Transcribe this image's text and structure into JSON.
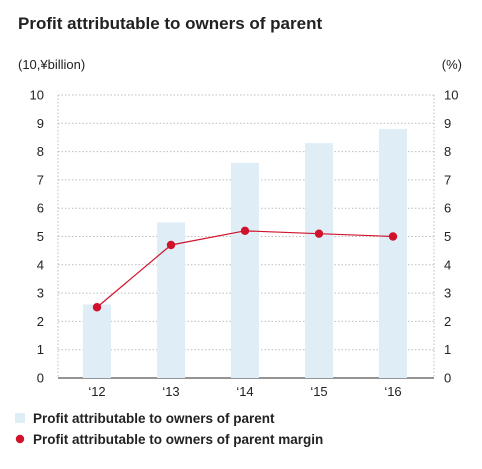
{
  "chart_data": {
    "type": "bar+line",
    "title": "Profit attributable to owners of parent",
    "left_axis_unit": "(10,¥billion)",
    "right_axis_unit": "(%)",
    "categories": [
      "‘12",
      "‘13",
      "‘14",
      "‘15",
      "‘16"
    ],
    "ylim": [
      0,
      10
    ],
    "yticks": [
      "0",
      "1",
      "2",
      "3",
      "4",
      "5",
      "6",
      "7",
      "8",
      "9",
      "10"
    ],
    "grid": "horizontal dotted",
    "legend_position": "bottom",
    "series": [
      {
        "name": "Profit attributable to owners of parent",
        "type": "bar",
        "axis": "left",
        "color": "#dfeef6",
        "values": [
          2.6,
          5.5,
          7.6,
          8.3,
          8.8
        ]
      },
      {
        "name": "Profit attributable to owners of parent margin",
        "type": "line",
        "axis": "right",
        "color": "#d0122c",
        "values": [
          2.5,
          4.7,
          5.2,
          5.1,
          5.0
        ]
      }
    ]
  }
}
